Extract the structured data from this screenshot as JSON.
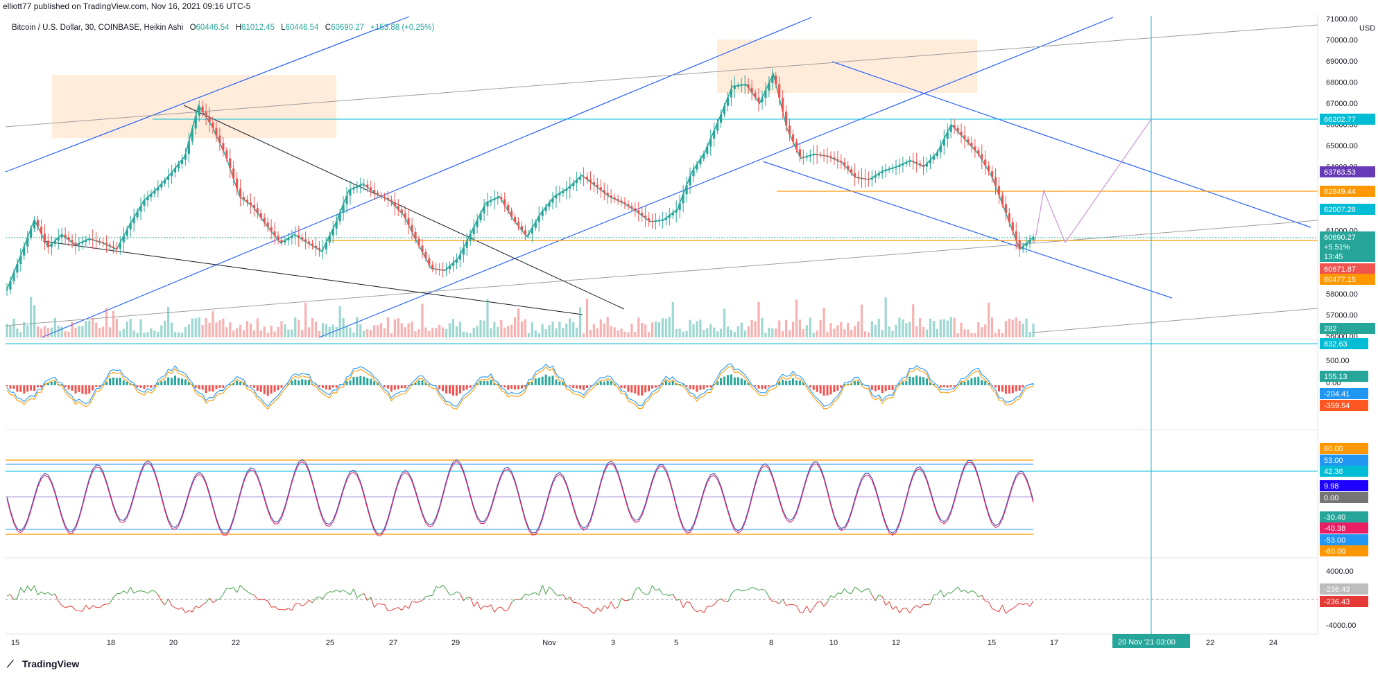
{
  "credit": "elliott77 published on TradingView.com, Nov 16, 2021 09:16 UTC-5",
  "legend": {
    "symbol": "Bitcoin / U.S. Dollar, 30, COINBASE, Heikin Ashi",
    "open_label": "O",
    "open": "60446.54",
    "high_label": "H",
    "high": "61012.45",
    "low_label": "L",
    "low": "60446.54",
    "close_label": "C",
    "close": "60690.27",
    "change": "+153.88 (+0.25%)"
  },
  "footer": {
    "brand": "TradingView"
  },
  "colors": {
    "up": "#26a69a",
    "down": "#ef5350",
    "blue_line": "#2962ff",
    "cyan": "#00bcd4",
    "orange": "#ff9800",
    "purple": "#7e57c2",
    "zone": "#ffe0c2"
  },
  "chart_data": [
    {
      "type": "line",
      "title": "Bitcoin / U.S. Dollar, 30, COINBASE, Heikin Ashi",
      "currency": "USD",
      "x_ticks": [
        "15",
        "18",
        "20",
        "22",
        "25",
        "27",
        "29",
        "Nov",
        "3",
        "5",
        "8",
        "10",
        "12",
        "15",
        "17",
        "20 Nov '21  03:00",
        "22",
        "24"
      ],
      "y_ticks": [
        "71000.00",
        "70000.00",
        "69000.00",
        "68000.00",
        "67000.00",
        "66000.00",
        "65000.00",
        "64000.00",
        "63000.00",
        "62000.00",
        "61000.00",
        "60000.00",
        "59000.00",
        "58000.00",
        "57000.00",
        "56000.00"
      ],
      "ylim": [
        56000,
        71000
      ],
      "series": [
        {
          "values": [
            58200,
            59800,
            61500,
            60200,
            60800,
            60300,
            60600,
            60400,
            60100,
            61300,
            62400,
            63000,
            63700,
            64500,
            66900,
            65900,
            64500,
            62600,
            62100,
            61200,
            60400,
            60800,
            60400,
            60000,
            61300,
            62900,
            63200,
            62700,
            62400,
            61700,
            60400,
            59200,
            59100,
            59700,
            61000,
            62300,
            62600,
            61500,
            60700,
            61800,
            62600,
            63000,
            63600,
            63100,
            62600,
            62300,
            61900,
            61400,
            61500,
            62000,
            63700,
            64700,
            66200,
            67800,
            67900,
            67000,
            68400,
            65800,
            64400,
            64600,
            64500,
            64200,
            63500,
            63400,
            63800,
            64000,
            64300,
            64000,
            64700,
            66000,
            65300,
            64600,
            63500,
            61800,
            60100,
            60690
          ]
        }
      ],
      "price_tags": [
        "66202.77",
        "63763.53",
        "62849.44",
        "62007.28",
        "60690.27",
        "+5.51%",
        "13:45",
        "60671.87",
        "60477.15",
        "282"
      ],
      "horizontal_levels": [
        66202.77,
        62849.44,
        60690.27
      ]
    },
    {
      "type": "line",
      "y_ticks": [
        "500.00",
        "0.00"
      ],
      "price_tags": [
        "832.63",
        "155.13",
        "-204.41",
        "-359.54"
      ]
    },
    {
      "type": "line",
      "price_tags": [
        "60.00",
        "53.00",
        "42.36",
        "9.98",
        "0.00",
        "-30.40",
        "-40.38",
        "-53.00",
        "-60.00"
      ],
      "horizontal_levels": [
        60,
        53,
        -53,
        -60
      ]
    },
    {
      "type": "area",
      "y_ticks": [
        "4000.00",
        "-4000.00"
      ],
      "price_tags": [
        "-236.43",
        "-236.43"
      ]
    }
  ]
}
